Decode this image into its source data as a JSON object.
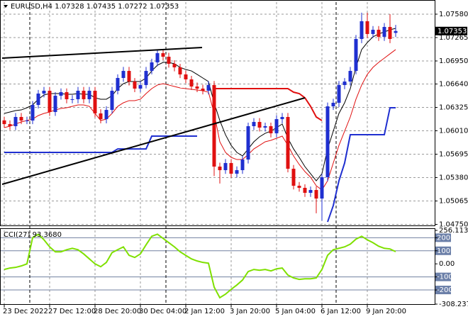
{
  "chart_data": {
    "type": "candlestick",
    "title": "EURUSD,H4",
    "categories": [
      "23 Dec 2022",
      null,
      null,
      null,
      null,
      null,
      null,
      null,
      "27 Dec 12:00",
      null,
      null,
      null,
      null,
      null,
      null,
      null,
      "28 Dec 20:00",
      null,
      null,
      null,
      null,
      null,
      null,
      null,
      "30 Dec 04:00",
      null,
      null,
      null,
      null,
      null,
      null,
      null,
      "2 Jan 12:00",
      null,
      null,
      null,
      null,
      null,
      null,
      null,
      "3 Jan 20:00",
      null,
      null,
      null,
      null,
      null,
      null,
      null,
      "5 Jan 04:00",
      null,
      null,
      null,
      null,
      null,
      null,
      null,
      "6 Jan 12:00",
      null,
      null,
      null,
      null,
      null,
      null,
      null,
      "9 Jan 20:00",
      null,
      null,
      null,
      null,
      null
    ],
    "open": [
      1.0615,
      1.061,
      1.06072,
      1.06196,
      1.06148,
      1.06148,
      1.06358,
      1.06511,
      1.06549,
      1.06263,
      1.06482,
      1.0653,
      1.06435,
      1.06435,
      1.06549,
      1.06435,
      1.06549,
      1.06244,
      1.06167,
      1.06291,
      1.06549,
      1.06721,
      1.06816,
      1.06673,
      1.06578,
      1.06626,
      1.06816,
      1.06931,
      1.07055,
      1.07007,
      1.06912,
      1.06864,
      1.06769,
      1.06702,
      1.06606,
      1.06578,
      1.06549,
      1.06626,
      1.05528,
      1.0548,
      1.05576,
      1.05432,
      1.0548,
      1.05623,
      1.06072,
      1.06129,
      1.06053,
      1.06072,
      1.05976,
      1.06167,
      1.06196,
      1.05499,
      1.0527,
      1.05242,
      1.05175,
      1.05213,
      1.05098,
      1.05385,
      1.06339,
      1.06387,
      1.06626,
      1.06673,
      1.06816,
      1.07246,
      1.07485,
      1.07313,
      1.0737,
      1.07275,
      1.07408,
      1.07328
    ],
    "high": [
      1.062,
      1.0615,
      1.0625,
      1.0625,
      1.062,
      1.0641,
      1.0656,
      1.066,
      1.066,
      1.0653,
      1.0658,
      1.0658,
      1.0649,
      1.066,
      1.066,
      1.066,
      1.066,
      1.063,
      1.0634,
      1.066,
      1.0677,
      1.0687,
      1.0687,
      1.0672,
      1.0668,
      1.0687,
      1.0698,
      1.071,
      1.071,
      1.0706,
      1.0696,
      1.0691,
      1.0682,
      1.0675,
      1.0666,
      1.0663,
      1.0668,
      1.0668,
      1.0558,
      1.0563,
      1.0563,
      1.0553,
      1.0567,
      1.0612,
      1.0618,
      1.0618,
      1.0612,
      1.0612,
      1.0622,
      1.0625,
      1.0625,
      1.0555,
      1.0532,
      1.0529,
      1.0526,
      1.0526,
      1.0543,
      1.0639,
      1.0644,
      1.0668,
      1.0672,
      1.0687,
      1.073,
      1.076,
      1.076,
      1.0742,
      1.0742,
      1.0746,
      1.0758,
      1.07435
    ],
    "low": [
      1.0605,
      1.0602,
      1.0602,
      1.061,
      1.061,
      1.061,
      1.0631,
      1.0646,
      1.0621,
      1.0621,
      1.0643,
      1.0638,
      1.0638,
      1.0638,
      1.0638,
      1.0638,
      1.0619,
      1.0611,
      1.0611,
      1.0624,
      1.065,
      1.0667,
      1.0662,
      1.0653,
      1.0653,
      1.0658,
      1.0677,
      1.0688,
      1.0696,
      1.0686,
      1.0681,
      1.0672,
      1.0665,
      1.0656,
      1.0653,
      1.065,
      1.065,
      1.054,
      1.053,
      1.0543,
      1.0538,
      1.0538,
      1.0543,
      1.0557,
      1.0602,
      1.06,
      1.06,
      1.0592,
      1.0592,
      1.0611,
      1.0545,
      1.0522,
      1.0519,
      1.0512,
      1.0512,
      1.049,
      1.048,
      1.0533,
      1.0629,
      1.0633,
      1.0657,
      1.0662,
      1.0677,
      1.0719,
      1.0726,
      1.0726,
      1.0722,
      1.0722,
      1.0719,
      1.07272
    ],
    "close": [
      1.061,
      1.06072,
      1.06196,
      1.06148,
      1.06148,
      1.06358,
      1.06511,
      1.06549,
      1.06263,
      1.06482,
      1.0653,
      1.06435,
      1.06435,
      1.06549,
      1.06435,
      1.06549,
      1.06244,
      1.06167,
      1.06291,
      1.06549,
      1.06721,
      1.06816,
      1.06673,
      1.06578,
      1.06626,
      1.06816,
      1.06931,
      1.07055,
      1.07007,
      1.06912,
      1.06864,
      1.06769,
      1.06702,
      1.06606,
      1.06578,
      1.06549,
      1.06626,
      1.05528,
      1.0548,
      1.05576,
      1.05432,
      1.0548,
      1.05623,
      1.06072,
      1.06129,
      1.06053,
      1.06072,
      1.05976,
      1.06167,
      1.06196,
      1.05499,
      1.0527,
      1.05242,
      1.05175,
      1.05213,
      1.05098,
      1.05385,
      1.06339,
      1.06387,
      1.06626,
      1.06673,
      1.06816,
      1.07246,
      1.07485,
      1.07313,
      1.0737,
      1.07275,
      1.07408,
      1.07246,
      1.07353
    ],
    "up_color": "#1f2fd0",
    "down_color": "#e01010",
    "series": [
      {
        "color": "#000000",
        "width": 1,
        "values": [
          1.06244,
          1.06263,
          1.06282,
          1.06291,
          1.0632,
          1.06358,
          1.06435,
          1.06492,
          1.06511,
          1.06511,
          1.06511,
          1.06501,
          1.06501,
          1.06511,
          1.06501,
          1.06501,
          1.06454,
          1.06435,
          1.06435,
          1.06482,
          1.06578,
          1.06645,
          1.06673,
          1.06673,
          1.06673,
          1.06721,
          1.06816,
          1.06893,
          1.06931,
          1.06931,
          1.06912,
          1.06864,
          1.06835,
          1.06816,
          1.06769,
          1.06721,
          1.06673,
          1.06387,
          1.06148,
          1.05957,
          1.05814,
          1.05719,
          1.05671,
          1.05766,
          1.05862,
          1.05929,
          1.05976,
          1.06005,
          1.06053,
          1.06101,
          1.0591,
          1.05766,
          1.05652,
          1.05528,
          1.05432,
          1.05337,
          1.05432,
          1.05766,
          1.06005,
          1.06244,
          1.06387,
          1.06578,
          1.06864,
          1.07103,
          1.07198,
          1.07275,
          1.07313,
          1.07341,
          1.0737,
          1.07389
        ]
      },
      {
        "color": "#e01010",
        "width": 1,
        "values": [
          1.06053,
          1.06072,
          1.06101,
          1.06129,
          1.06148,
          1.06167,
          1.06215,
          1.06244,
          1.06263,
          1.06291,
          1.06311,
          1.0632,
          1.06339,
          1.06358,
          1.06358,
          1.06339,
          1.06244,
          1.06148,
          1.06167,
          1.06244,
          1.06339,
          1.06387,
          1.06416,
          1.06416,
          1.06435,
          1.06511,
          1.06578,
          1.06626,
          1.06645,
          1.06626,
          1.06606,
          1.06587,
          1.06578,
          1.06568,
          1.06559,
          1.06549,
          1.0653,
          1.06244,
          1.05862,
          1.05719,
          1.05652,
          1.05623,
          1.05623,
          1.0569,
          1.05766,
          1.05814,
          1.05862,
          1.05881,
          1.0591,
          1.05938,
          1.05814,
          1.05671,
          1.05557,
          1.05461,
          1.05385,
          1.0527,
          1.05213,
          1.05337,
          1.05576,
          1.05814,
          1.06005,
          1.06196,
          1.06435,
          1.06626,
          1.06769,
          1.06864,
          1.06931,
          1.06988,
          1.07046,
          1.07103
        ]
      },
      {
        "color": "#e01010",
        "width": 2,
        "values": [
          null,
          null,
          null,
          null,
          null,
          null,
          null,
          null,
          null,
          null,
          null,
          null,
          null,
          null,
          null,
          null,
          null,
          null,
          null,
          null,
          null,
          null,
          null,
          null,
          null,
          null,
          null,
          null,
          null,
          null,
          null,
          null,
          null,
          null,
          null,
          null,
          null,
          1.06578,
          1.06578,
          1.06578,
          1.06578,
          1.06578,
          1.06578,
          1.06578,
          1.06578,
          1.06578,
          1.06578,
          1.06578,
          1.06578,
          1.06578,
          1.06578,
          1.0653,
          1.06511,
          1.06454,
          1.06339,
          1.06196,
          1.06148,
          null,
          null,
          null,
          null,
          null,
          null,
          null,
          null,
          null,
          null,
          null,
          null,
          null
        ]
      },
      {
        "color": "#1f2fd0",
        "width": 2,
        "values": [
          1.05719,
          1.05719,
          1.05719,
          1.05719,
          1.05719,
          1.05719,
          1.05719,
          1.05719,
          1.05719,
          1.05719,
          1.05719,
          1.05719,
          1.05719,
          1.05719,
          1.05719,
          1.05719,
          1.05719,
          1.05719,
          1.05719,
          1.05719,
          1.05766,
          1.05766,
          1.05766,
          1.05766,
          1.05766,
          1.05766,
          1.05938,
          1.05938,
          1.05938,
          1.05938,
          1.05938,
          1.05938,
          1.05938,
          1.05938,
          1.05938,
          null,
          null,
          null,
          null,
          null,
          null,
          null,
          null,
          null,
          null,
          null,
          null,
          null,
          null,
          null,
          null,
          null,
          null,
          null,
          null,
          null,
          null,
          1.04783,
          1.05003,
          1.05337,
          1.05576,
          1.05957,
          1.05957,
          1.05957,
          1.05957,
          1.05957,
          1.05957,
          1.05957,
          1.0632,
          1.0632
        ]
      }
    ],
    "ylim": [
      1.04736,
      1.07742
    ],
    "yticks": [
      {
        "value": 1.0758,
        "label": "1.07580"
      },
      1.07265,
      {
        "value": 1.0695,
        "label": "1.06950"
      },
      {
        "value": 1.0664,
        "label": "1.06640"
      },
      1.06325,
      {
        "value": 1.0601,
        "label": "1.06010"
      },
      1.05695,
      {
        "value": 1.0538,
        "label": "1.05380"
      },
      1.05065,
      {
        "value": 1.0475,
        "label": "1.04750"
      }
    ],
    "grid": true,
    "indicator": {
      "type": "line",
      "title": "CCI(27) 93.3680",
      "color": "#7fe000",
      "values": [
        -43,
        -32,
        -27,
        -16,
        0,
        200,
        227,
        184,
        130,
        92,
        92,
        108,
        119,
        108,
        76,
        38,
        0,
        -22,
        11,
        86,
        108,
        130,
        65,
        49,
        76,
        146,
        211,
        227,
        195,
        162,
        130,
        92,
        65,
        38,
        22,
        11,
        5,
        -178,
        -259,
        -232,
        -195,
        -162,
        -124,
        -59,
        -43,
        -49,
        -43,
        -54,
        -38,
        -32,
        -86,
        -108,
        -119,
        -114,
        -114,
        -108,
        -43,
        65,
        108,
        119,
        130,
        151,
        189,
        211,
        184,
        162,
        135,
        119,
        114,
        93.368
      ],
      "ylim": [
        -308.2372,
        256.113
      ],
      "yticks": [
        256.113,
        200,
        100,
        {
          "value": 0,
          "label": "0.00"
        },
        -100,
        -200,
        -308.2372
      ]
    }
  }
}
